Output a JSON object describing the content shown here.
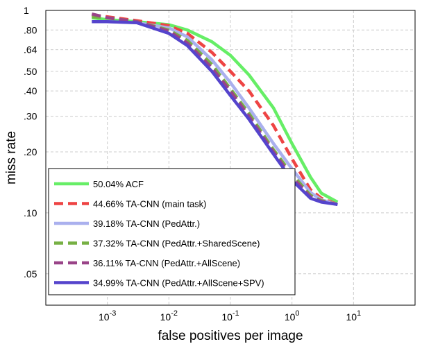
{
  "chart_data": {
    "type": "line",
    "xlabel": "false positives per image",
    "ylabel": "miss rate",
    "x_scale": "log",
    "y_scale": "log",
    "xlim": [
      0.0001,
      100
    ],
    "ylim": [
      0.035,
      1
    ],
    "x_ticks": [
      {
        "value": 0.001,
        "base": "10",
        "exp": "-3"
      },
      {
        "value": 0.01,
        "base": "10",
        "exp": "-2"
      },
      {
        "value": 0.1,
        "base": "10",
        "exp": "-1"
      },
      {
        "value": 1,
        "base": "10",
        "exp": "0"
      },
      {
        "value": 10,
        "base": "10",
        "exp": "1"
      }
    ],
    "y_ticks": [
      {
        "value": 0.05,
        "label": ".05"
      },
      {
        "value": 0.1,
        "label": ".10"
      },
      {
        "value": 0.2,
        "label": ".20"
      },
      {
        "value": 0.3,
        "label": ".30"
      },
      {
        "value": 0.4,
        "label": ".40"
      },
      {
        "value": 0.5,
        "label": ".50"
      },
      {
        "value": 0.64,
        "label": ".64"
      },
      {
        "value": 0.8,
        "label": ".80"
      },
      {
        "value": 1.0,
        "label": "1"
      }
    ],
    "grid": true,
    "legend_position": "bottom-left",
    "series": [
      {
        "name": "50.04% ACF",
        "color": "#66ee66",
        "dash": "solid",
        "points": [
          [
            0.00056,
            0.92
          ],
          [
            0.001,
            0.9
          ],
          [
            0.003,
            0.88
          ],
          [
            0.01,
            0.85
          ],
          [
            0.02,
            0.8
          ],
          [
            0.05,
            0.7
          ],
          [
            0.1,
            0.6
          ],
          [
            0.2,
            0.48
          ],
          [
            0.5,
            0.33
          ],
          [
            1.0,
            0.22
          ],
          [
            2.0,
            0.15
          ],
          [
            3.0,
            0.125
          ],
          [
            5.5,
            0.113
          ]
        ]
      },
      {
        "name": "44.66% TA-CNN (main task)",
        "color": "#ee4444",
        "dash": "dashed",
        "points": [
          [
            0.00056,
            0.95
          ],
          [
            0.001,
            0.93
          ],
          [
            0.003,
            0.89
          ],
          [
            0.01,
            0.84
          ],
          [
            0.02,
            0.77
          ],
          [
            0.05,
            0.62
          ],
          [
            0.1,
            0.5
          ],
          [
            0.2,
            0.4
          ],
          [
            0.5,
            0.27
          ],
          [
            1.0,
            0.185
          ],
          [
            2.0,
            0.13
          ],
          [
            3.0,
            0.118
          ],
          [
            5.5,
            0.11
          ]
        ]
      },
      {
        "name": "39.18% TA-CNN (PedAttr.)",
        "color": "#aab0ee",
        "dash": "solid",
        "points": [
          [
            0.00056,
            0.88
          ],
          [
            0.001,
            0.88
          ],
          [
            0.003,
            0.87
          ],
          [
            0.01,
            0.82
          ],
          [
            0.02,
            0.74
          ],
          [
            0.05,
            0.57
          ],
          [
            0.1,
            0.44
          ],
          [
            0.2,
            0.33
          ],
          [
            0.5,
            0.22
          ],
          [
            1.0,
            0.165
          ],
          [
            2.0,
            0.126
          ],
          [
            3.0,
            0.116
          ],
          [
            5.5,
            0.11
          ]
        ]
      },
      {
        "name": "37.32% TA-CNN (PedAttr.+SharedScene)",
        "color": "#77b044",
        "dash": "dashed",
        "points": [
          [
            0.00056,
            0.93
          ],
          [
            0.001,
            0.92
          ],
          [
            0.003,
            0.88
          ],
          [
            0.01,
            0.8
          ],
          [
            0.02,
            0.71
          ],
          [
            0.05,
            0.54
          ],
          [
            0.1,
            0.41
          ],
          [
            0.2,
            0.31
          ],
          [
            0.5,
            0.205
          ],
          [
            1.0,
            0.155
          ],
          [
            2.0,
            0.122
          ],
          [
            3.0,
            0.115
          ],
          [
            5.5,
            0.11
          ]
        ]
      },
      {
        "name": "36.11% TA-CNN (PedAttr.+AllScene)",
        "color": "#994488",
        "dash": "dashed",
        "points": [
          [
            0.00056,
            0.96
          ],
          [
            0.001,
            0.92
          ],
          [
            0.003,
            0.88
          ],
          [
            0.01,
            0.79
          ],
          [
            0.02,
            0.69
          ],
          [
            0.05,
            0.52
          ],
          [
            0.1,
            0.4
          ],
          [
            0.2,
            0.3
          ],
          [
            0.5,
            0.2
          ],
          [
            1.0,
            0.15
          ],
          [
            2.0,
            0.12
          ],
          [
            3.0,
            0.114
          ],
          [
            5.5,
            0.11
          ]
        ]
      },
      {
        "name": "34.99% TA-CNN (PedAttr.+AllScene+SPV)",
        "color": "#5544cc",
        "dash": "solid",
        "points": [
          [
            0.00056,
            0.88
          ],
          [
            0.001,
            0.88
          ],
          [
            0.003,
            0.87
          ],
          [
            0.01,
            0.77
          ],
          [
            0.02,
            0.67
          ],
          [
            0.05,
            0.5
          ],
          [
            0.1,
            0.38
          ],
          [
            0.2,
            0.29
          ],
          [
            0.5,
            0.195
          ],
          [
            1.0,
            0.145
          ],
          [
            2.0,
            0.118
          ],
          [
            3.0,
            0.113
          ],
          [
            5.5,
            0.11
          ]
        ]
      }
    ]
  }
}
